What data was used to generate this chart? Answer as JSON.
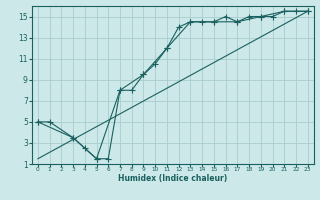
{
  "xlabel": "Humidex (Indice chaleur)",
  "bg_color": "#cce8e8",
  "grid_color": "#aacccc",
  "line_color": "#1a6060",
  "xlim": [
    -0.5,
    23.5
  ],
  "ylim": [
    1,
    16
  ],
  "xticks": [
    0,
    1,
    2,
    3,
    4,
    5,
    6,
    7,
    8,
    9,
    10,
    11,
    12,
    13,
    14,
    15,
    16,
    17,
    18,
    19,
    20,
    21,
    22,
    23
  ],
  "yticks": [
    1,
    3,
    5,
    7,
    9,
    11,
    13,
    15
  ],
  "curve1_x": [
    0,
    1,
    3,
    4,
    5,
    6,
    7,
    8,
    9,
    10,
    11,
    12,
    13,
    14,
    15,
    16,
    17,
    18,
    19,
    20,
    21,
    22,
    23
  ],
  "curve1_y": [
    5,
    5,
    3.5,
    2.5,
    1.5,
    1.5,
    8.0,
    8.0,
    9.5,
    10.5,
    12.0,
    14.0,
    14.5,
    14.5,
    14.5,
    15.0,
    14.5,
    15.0,
    15.0,
    15.0,
    15.5,
    15.5,
    15.5
  ],
  "curve2_x": [
    0,
    23
  ],
  "curve2_y": [
    1.5,
    15.5
  ],
  "curve3_x": [
    0,
    3,
    5,
    7,
    9,
    11,
    13,
    15,
    17,
    19,
    21,
    23
  ],
  "curve3_y": [
    5,
    3.5,
    1.5,
    8.0,
    9.5,
    12.0,
    14.5,
    14.5,
    14.5,
    15.0,
    15.5,
    15.5
  ]
}
